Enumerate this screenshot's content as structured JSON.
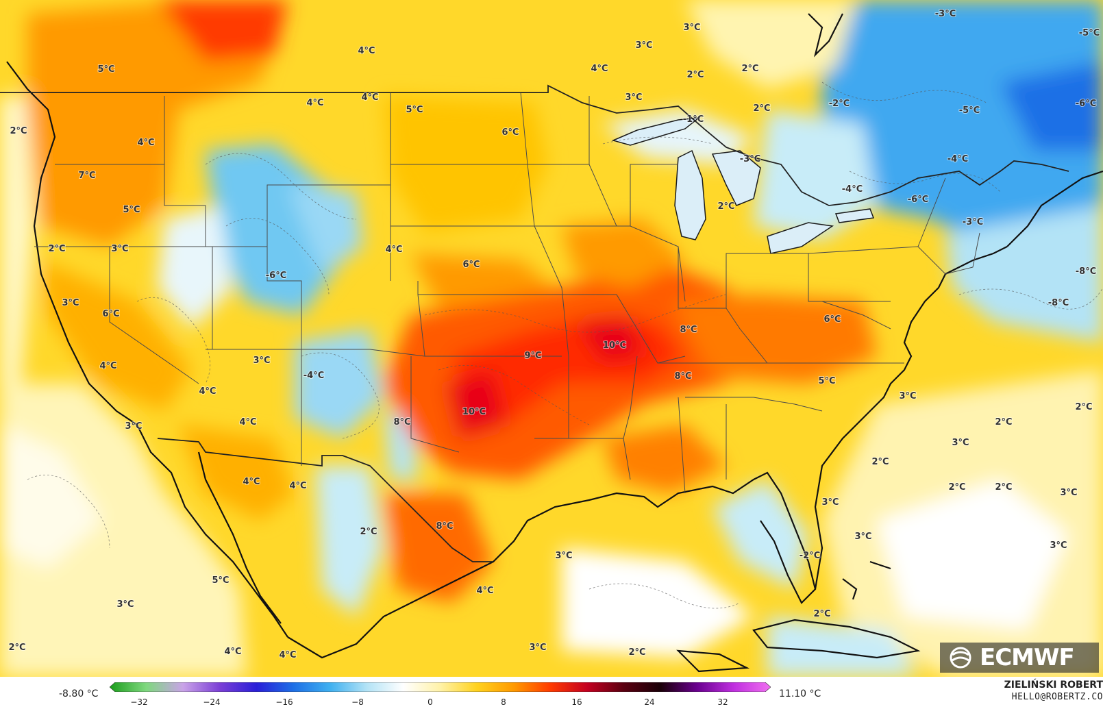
{
  "map": {
    "labels": [
      {
        "text": "5°C"
      },
      {
        "text": "4°C"
      },
      {
        "text": "3°C"
      },
      {
        "text": "3°C"
      },
      {
        "text": "-3°C"
      },
      {
        "text": "-5°C"
      },
      {
        "text": "4°C"
      },
      {
        "text": "2°C"
      },
      {
        "text": "2°C"
      },
      {
        "text": "4°C"
      },
      {
        "text": "4°C"
      },
      {
        "text": "3°C"
      },
      {
        "text": "2°C"
      },
      {
        "text": "-2°C"
      },
      {
        "text": "-5°C"
      },
      {
        "text": "-6°C"
      },
      {
        "text": "2°C"
      },
      {
        "text": "5°C"
      },
      {
        "text": "6°C"
      },
      {
        "text": "-1°C"
      },
      {
        "text": "4°C"
      },
      {
        "text": "-3°C"
      },
      {
        "text": "-4°C"
      },
      {
        "text": "7°C"
      },
      {
        "text": "-4°C"
      },
      {
        "text": "5°C"
      },
      {
        "text": "2°C"
      },
      {
        "text": "-6°C"
      },
      {
        "text": "-3°C"
      },
      {
        "text": "2°C"
      },
      {
        "text": "3°C"
      },
      {
        "text": "4°C"
      },
      {
        "text": "6°C"
      },
      {
        "text": "-6°C"
      },
      {
        "text": "-8°C"
      },
      {
        "text": "3°C"
      },
      {
        "text": "6°C"
      },
      {
        "text": "-8°C"
      },
      {
        "text": "6°C"
      },
      {
        "text": "8°C"
      },
      {
        "text": "10°C"
      },
      {
        "text": "9°C"
      },
      {
        "text": "4°C"
      },
      {
        "text": "3°C"
      },
      {
        "text": "-4°C"
      },
      {
        "text": "8°C"
      },
      {
        "text": "5°C"
      },
      {
        "text": "4°C"
      },
      {
        "text": "3°C"
      },
      {
        "text": "2°C"
      },
      {
        "text": "10°C"
      },
      {
        "text": "3°C"
      },
      {
        "text": "4°C"
      },
      {
        "text": "8°C"
      },
      {
        "text": "2°C"
      },
      {
        "text": "3°C"
      },
      {
        "text": "2°C"
      },
      {
        "text": "4°C"
      },
      {
        "text": "4°C"
      },
      {
        "text": "2°C"
      },
      {
        "text": "2°C"
      },
      {
        "text": "3°C"
      },
      {
        "text": "2°C"
      },
      {
        "text": "8°C"
      },
      {
        "text": "3°C"
      },
      {
        "text": "3°C"
      },
      {
        "text": "3°C"
      },
      {
        "text": "-2°C"
      },
      {
        "text": "3°C"
      },
      {
        "text": "5°C"
      },
      {
        "text": "4°C"
      },
      {
        "text": "3°C"
      },
      {
        "text": "2°C"
      },
      {
        "text": "2°C"
      },
      {
        "text": "4°C"
      },
      {
        "text": "4°C"
      },
      {
        "text": "3°C"
      },
      {
        "text": "2°C"
      }
    ]
  },
  "legend": {
    "min_label": "-8.80 °C",
    "max_label": "11.10 °C",
    "ticks": [
      "−32",
      "−24",
      "−16",
      "−8",
      "0",
      "8",
      "16",
      "24",
      "32"
    ],
    "stops": [
      "#1b9e1b",
      "#7fd87f",
      "#c9a3e8",
      "#7b3fd6",
      "#2a1fd8",
      "#1e6fe6",
      "#3fb0f0",
      "#b3e3f6",
      "#ffffff",
      "#fff2a8",
      "#ffd21f",
      "#ff9a00",
      "#ff3b00",
      "#c40020",
      "#5a0010",
      "#1a0008",
      "#6a0090",
      "#c030e0",
      "#f070f0"
    ]
  },
  "credit": {
    "name": "ZIELIŃSKI ROBERT",
    "email": "HELLO@ROBERTZ.CO"
  },
  "logo": {
    "text": "ECMWF",
    "icon": "ecmwf-logo-icon"
  },
  "colors": {
    "warm_yellow": "#ffd21f",
    "warm_orange": "#ff9a00",
    "hot_red": "#ff3b00",
    "cold_blue": "#3fb0f0",
    "light_cold": "#b3e3f6",
    "ocean_light": "#fff5b0"
  }
}
